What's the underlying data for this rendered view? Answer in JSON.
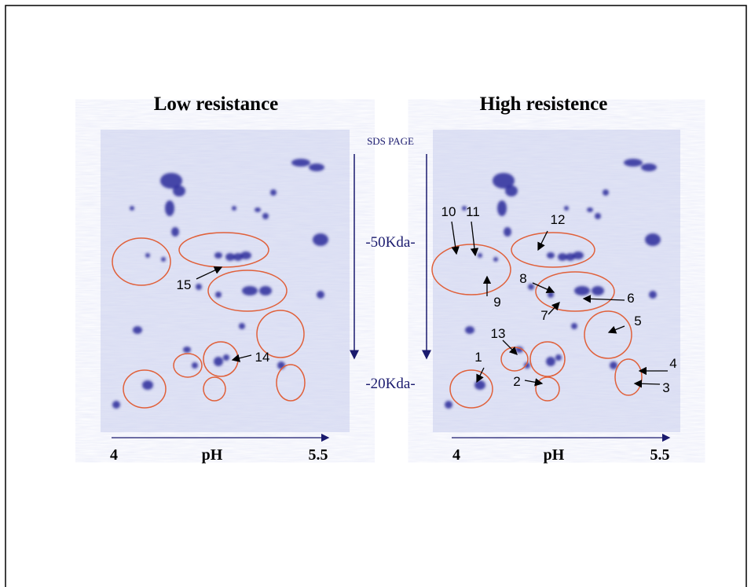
{
  "panels": [
    {
      "title": "Low resistance",
      "axis": {
        "start": "4",
        "label": "pH",
        "end": "5.5"
      },
      "spot_labels": [
        "15",
        "14"
      ]
    },
    {
      "title": "High resistence",
      "axis": {
        "start": "4",
        "label": "pH",
        "end": "5.5"
      },
      "spot_labels": [
        "10",
        "11",
        "12",
        "8",
        "9",
        "6",
        "7",
        "5",
        "13",
        "1",
        "2",
        "4",
        "3"
      ]
    }
  ],
  "center": {
    "heading": "SDS PAGE",
    "markers": [
      "-50Kda-",
      "-20Kda-"
    ]
  }
}
